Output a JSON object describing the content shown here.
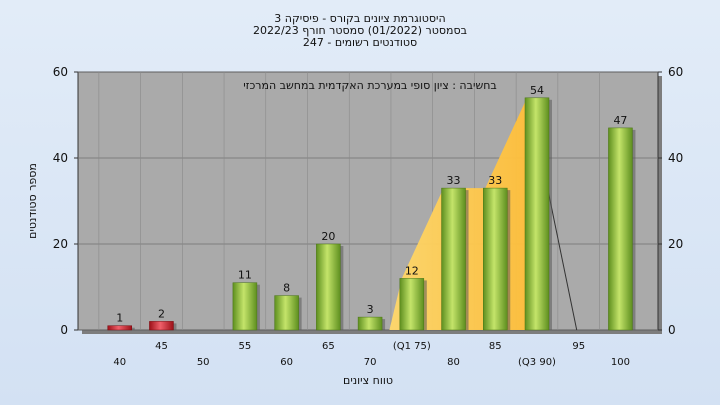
{
  "chart_data": {
    "type": "bar",
    "title_lines": [
      "היסטוגרמת ציונים בקורס - פיסיקה 3",
      "בסמסטר  (01/2022)  סמסטר חורף 2022/23",
      "סטודנטים רשומים - 247"
    ],
    "xlabel": "טווח ציונים",
    "ylabel": "מספר סטודנטים",
    "note": "בחשיבה : ציון סופי במערכת האקדמית במחשב המרכזי",
    "ylim": [
      0,
      60
    ],
    "yticks": [
      0,
      20,
      40,
      60
    ],
    "categories": [
      40,
      45,
      50,
      55,
      60,
      65,
      70,
      75,
      80,
      85,
      90,
      95,
      100
    ],
    "category_labels": [
      "40",
      "45",
      "50",
      "55",
      "60",
      "65",
      "70",
      "(Q1 75)",
      "80",
      "85",
      "(Q3 90)",
      "95",
      "100"
    ],
    "values": [
      1,
      2,
      0,
      11,
      8,
      20,
      3,
      12,
      33,
      33,
      54,
      0,
      47
    ],
    "value_labels": [
      "1",
      "2",
      "",
      "11",
      "8",
      "20",
      "3",
      "12",
      "33",
      "33",
      "54",
      "",
      "47"
    ],
    "failing_color": "#d8202a",
    "passing_color": "#8cc63f",
    "plot_background": "#aaaaaa",
    "quartile_band_color": "#ffc845",
    "quartile_range": [
      75,
      90
    ],
    "grid": true
  }
}
